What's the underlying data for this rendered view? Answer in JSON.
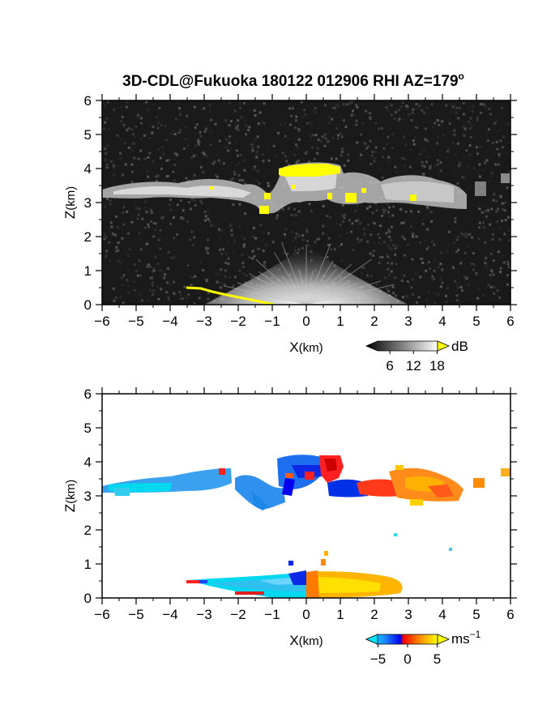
{
  "title_main": "3D-CDL@Fukuoka 180122 012906 RHI AZ=179",
  "title_sup": "o",
  "chart_data": [
    {
      "type": "heatmap",
      "name": "intensity",
      "xlabel_main": "X",
      "xlabel_unit": "(km)",
      "ylabel_main": "Z",
      "ylabel_unit": "(km)",
      "xlim": [
        -6,
        6
      ],
      "ylim": [
        0,
        6
      ],
      "xticks": [
        -6,
        -5,
        -4,
        -3,
        -2,
        -1,
        0,
        1,
        2,
        3,
        4,
        5,
        6
      ],
      "yticks": [
        0,
        1,
        2,
        3,
        4,
        5,
        6
      ],
      "colorbar": {
        "unit": "dB",
        "ticks": [
          6,
          12,
          18
        ],
        "range": [
          0,
          21
        ],
        "colors": [
          "#000000",
          "#ffffff"
        ],
        "overflow_color": "#ffff00"
      }
    },
    {
      "type": "heatmap",
      "name": "doppler_velocity",
      "xlabel_main": "X",
      "xlabel_unit": "(km)",
      "ylabel_main": "Z",
      "ylabel_unit": "(km)",
      "xlim": [
        -6,
        6
      ],
      "ylim": [
        0,
        6
      ],
      "xticks": [
        -6,
        -5,
        -4,
        -3,
        -2,
        -1,
        0,
        1,
        2,
        3,
        4,
        5,
        6
      ],
      "yticks": [
        0,
        1,
        2,
        3,
        4,
        5,
        6
      ],
      "colorbar": {
        "unit_main": "ms",
        "unit_sup": "−1",
        "ticks": [
          -5,
          0,
          5
        ],
        "tick_labels": [
          "−5",
          "0",
          "5"
        ],
        "range": [
          -7,
          7
        ],
        "colors": [
          "#00e5ff",
          "#1e90ff",
          "#0000ee",
          "#ff0000",
          "#ff8c00",
          "#ffff00"
        ]
      }
    }
  ]
}
